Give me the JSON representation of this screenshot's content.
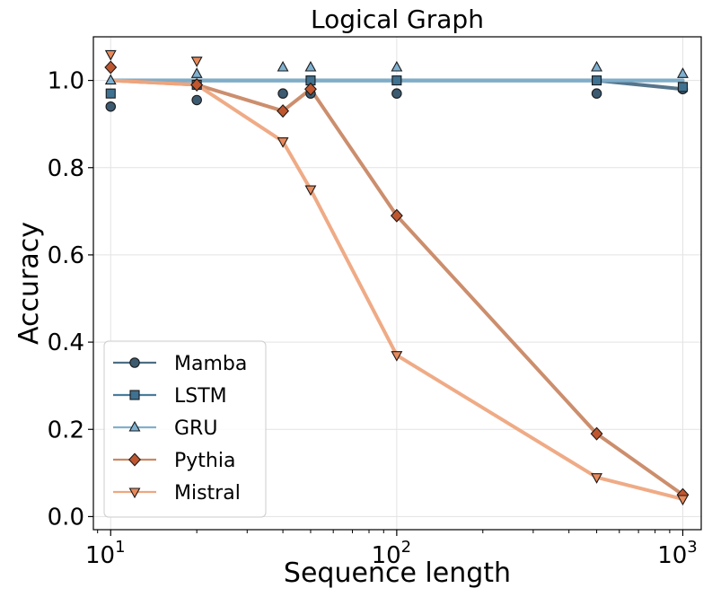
{
  "chart_data": {
    "type": "line",
    "title": "Logical Graph",
    "xlabel": "Sequence length",
    "ylabel": "Accuracy",
    "xscale": "log",
    "xlim": [
      8.7,
      1160
    ],
    "ylim": [
      -0.03,
      1.1
    ],
    "grid": true,
    "legend_position": "lower-left",
    "x_ticks": [
      {
        "value": 10,
        "base": "10",
        "exp": "1"
      },
      {
        "value": 100,
        "base": "10",
        "exp": "2"
      },
      {
        "value": 1000,
        "base": "10",
        "exp": "3"
      }
    ],
    "y_ticks": [
      {
        "value": 0.0,
        "label": "0.0"
      },
      {
        "value": 0.2,
        "label": "0.2"
      },
      {
        "value": 0.4,
        "label": "0.4"
      },
      {
        "value": 0.6,
        "label": "0.6"
      },
      {
        "value": 0.8,
        "label": "0.8"
      },
      {
        "value": 1.0,
        "label": "1.0"
      }
    ],
    "series": [
      {
        "name": "Mamba",
        "marker": "circle",
        "line_color": "#4e6e85",
        "marker_color": "#3c5a70",
        "line_width": 4,
        "line": {
          "x": [
            10,
            20,
            40,
            50,
            100,
            500,
            1000
          ],
          "y": [
            1.0,
            1.0,
            1.0,
            1.0,
            1.0,
            1.0,
            0.98
          ]
        },
        "markers": {
          "x": [
            10,
            20,
            40,
            50,
            100,
            500,
            1000
          ],
          "y": [
            0.94,
            0.955,
            0.97,
            0.97,
            0.97,
            0.97,
            0.98
          ]
        }
      },
      {
        "name": "LSTM",
        "marker": "square",
        "line_color": "#4a7c9c",
        "marker_color": "#3f7191",
        "line_width": 4,
        "line": {
          "x": [
            10,
            20,
            40,
            50,
            100,
            500,
            1000
          ],
          "y": [
            1.0,
            1.0,
            1.0,
            1.0,
            1.0,
            1.0,
            1.0
          ]
        },
        "markers": {
          "x": [
            10,
            20,
            50,
            100,
            500,
            1000
          ],
          "y": [
            0.97,
            0.99,
            1.0,
            1.0,
            1.0,
            0.985
          ]
        }
      },
      {
        "name": "GRU",
        "marker": "triangle-up",
        "line_color": "#82b0cc",
        "marker_color": "#7fb0d0",
        "line_width": 4,
        "line": {
          "x": [
            10,
            20,
            40,
            50,
            100,
            500,
            1000
          ],
          "y": [
            1.0,
            1.0,
            1.0,
            1.0,
            1.0,
            1.0,
            1.0
          ]
        },
        "markers": {
          "x": [
            10,
            20,
            40,
            50,
            100,
            500,
            1000
          ],
          "y": [
            1.0,
            1.015,
            1.03,
            1.03,
            1.03,
            1.03,
            1.015
          ]
        }
      },
      {
        "name": "Pythia",
        "marker": "diamond",
        "line_color": "#c98865",
        "marker_color": "#c0562e",
        "line_width": 4,
        "line": {
          "x": [
            10,
            20,
            40,
            50,
            100,
            500,
            1000
          ],
          "y": [
            1.0,
            0.99,
            0.93,
            0.98,
            0.69,
            0.19,
            0.05
          ]
        },
        "markers": {
          "x": [
            10,
            20,
            40,
            50,
            100,
            500,
            1000
          ],
          "y": [
            1.03,
            0.99,
            0.93,
            0.98,
            0.69,
            0.19,
            0.05
          ]
        }
      },
      {
        "name": "Mistral",
        "marker": "triangle-down",
        "line_color": "#eea77f",
        "marker_color": "#e88a5c",
        "line_width": 4,
        "line": {
          "x": [
            10,
            20,
            40,
            50,
            100,
            500,
            1000
          ],
          "y": [
            1.0,
            0.99,
            0.86,
            0.75,
            0.37,
            0.09,
            0.04
          ]
        },
        "markers": {
          "x": [
            10,
            20,
            40,
            50,
            100,
            500,
            1000
          ],
          "y": [
            1.06,
            1.045,
            0.86,
            0.75,
            0.37,
            0.09,
            0.04
          ]
        }
      }
    ]
  }
}
